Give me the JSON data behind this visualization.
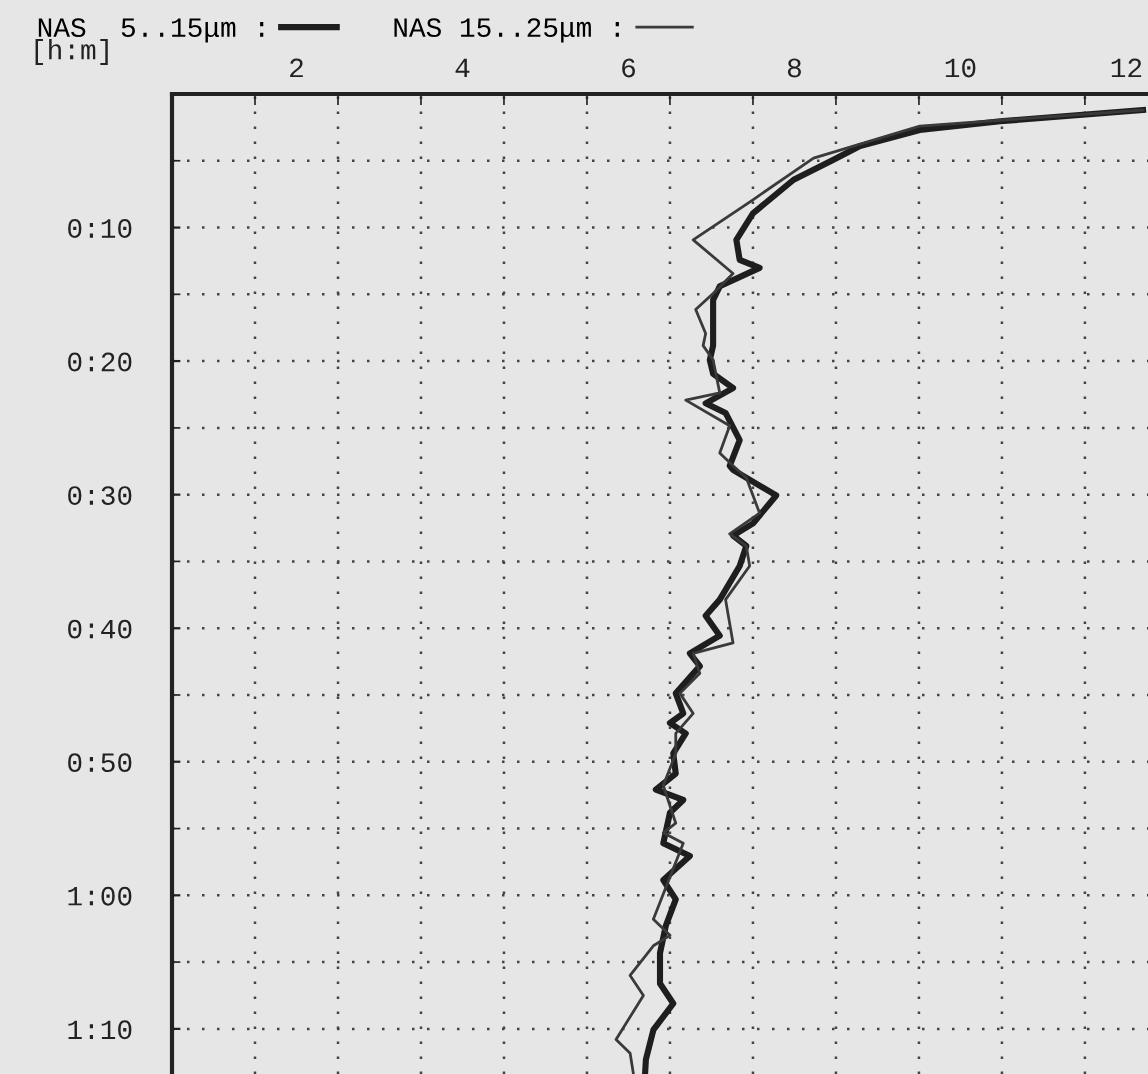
{
  "chart_data": {
    "type": "line",
    "ylabel": "[h:m]",
    "legend": "top",
    "grid": true,
    "line_style": "solid",
    "marker": "none",
    "xlim": [
      0.5,
      12.26
    ],
    "ylim": [
      1.223,
      0
    ],
    "xticks": [
      {
        "value": 1.5,
        "label": null
      },
      2,
      {
        "value": 2.5,
        "label": null
      },
      {
        "value": 3.5,
        "label": null
      },
      4,
      {
        "value": 4.5,
        "label": null
      },
      {
        "value": 5.5,
        "label": null
      },
      6,
      {
        "value": 6.5,
        "label": null
      },
      {
        "value": 7.5,
        "label": null
      },
      8,
      {
        "value": 8.5,
        "label": null
      },
      {
        "value": 9.5,
        "label": null
      },
      10,
      {
        "value": 10.5,
        "label": null
      },
      {
        "value": 11.5,
        "label": null
      },
      12
    ],
    "yticks": [
      {
        "value": 0.0833,
        "label": null
      },
      {
        "value": 0.1667,
        "label": "0:10"
      },
      {
        "value": 0.25,
        "label": null
      },
      {
        "value": 0.3333,
        "label": "0:20"
      },
      {
        "value": 0.4167,
        "label": null
      },
      {
        "value": 0.5,
        "label": "0:30"
      },
      {
        "value": 0.5833,
        "label": null
      },
      {
        "value": 0.6667,
        "label": "0:40"
      },
      {
        "value": 0.75,
        "label": null
      },
      {
        "value": 0.8333,
        "label": "0:50"
      },
      {
        "value": 0.9167,
        "label": null
      },
      {
        "value": 1.0,
        "label": "1:00"
      },
      {
        "value": 1.0833,
        "label": null
      },
      {
        "value": 1.1667,
        "label": "1:10"
      }
    ],
    "series": [
      {
        "name": "NAS  5..15μm :",
        "color": "#1e1e1e",
        "x": [
          12.2,
          10.48,
          9.51,
          8.79,
          8.47,
          7.99,
          7.5,
          7.3,
          7.34,
          7.58,
          7.1,
          7.02,
          7.02,
          6.98,
          7.02,
          7.26,
          6.93,
          7.17,
          7.34,
          7.22,
          7.26,
          7.78,
          7.5,
          7.26,
          7.42,
          7.34,
          7.1,
          6.93,
          7.1,
          6.74,
          6.86,
          6.57,
          6.66,
          6.5,
          6.69,
          6.54,
          6.57,
          6.33,
          6.66,
          6.5,
          6.42,
          6.74,
          6.42,
          6.57,
          6.45,
          6.38,
          6.38,
          6.54,
          6.3,
          6.21,
          6.2
        ],
        "values": [
          0.02,
          0.034,
          0.045,
          0.065,
          0.082,
          0.107,
          0.149,
          0.182,
          0.207,
          0.217,
          0.24,
          0.257,
          0.314,
          0.332,
          0.349,
          0.367,
          0.386,
          0.398,
          0.432,
          0.464,
          0.469,
          0.501,
          0.536,
          0.551,
          0.564,
          0.589,
          0.631,
          0.651,
          0.676,
          0.698,
          0.714,
          0.748,
          0.773,
          0.785,
          0.798,
          0.823,
          0.848,
          0.868,
          0.881,
          0.897,
          0.935,
          0.951,
          0.981,
          1.005,
          1.038,
          1.072,
          1.11,
          1.135,
          1.168,
          1.205,
          1.223
        ]
      },
      {
        "name": "NAS 15..25μm :",
        "color": "#3a3a3a",
        "x": [
          12.2,
          9.51,
          8.23,
          7.5,
          6.78,
          7.26,
          7.02,
          6.81,
          6.93,
          6.9,
          7.02,
          7.1,
          6.69,
          7.22,
          7.1,
          7.26,
          7.42,
          7.58,
          7.22,
          7.42,
          7.46,
          7.17,
          7.26,
          6.78,
          6.86,
          6.62,
          6.78,
          6.57,
          6.57,
          6.42,
          6.57,
          6.42,
          6.66,
          6.3,
          6.5,
          6.3,
          6.02,
          6.18,
          5.85,
          6.02,
          6.06
        ],
        "values": [
          0.02,
          0.04,
          0.08,
          0.132,
          0.182,
          0.224,
          0.249,
          0.269,
          0.299,
          0.314,
          0.332,
          0.373,
          0.382,
          0.414,
          0.448,
          0.464,
          0.479,
          0.523,
          0.549,
          0.564,
          0.589,
          0.631,
          0.685,
          0.698,
          0.723,
          0.748,
          0.773,
          0.798,
          0.823,
          0.863,
          0.91,
          0.922,
          0.935,
          1.03,
          1.05,
          1.063,
          1.1,
          1.125,
          1.18,
          1.197,
          1.223
        ]
      }
    ]
  }
}
